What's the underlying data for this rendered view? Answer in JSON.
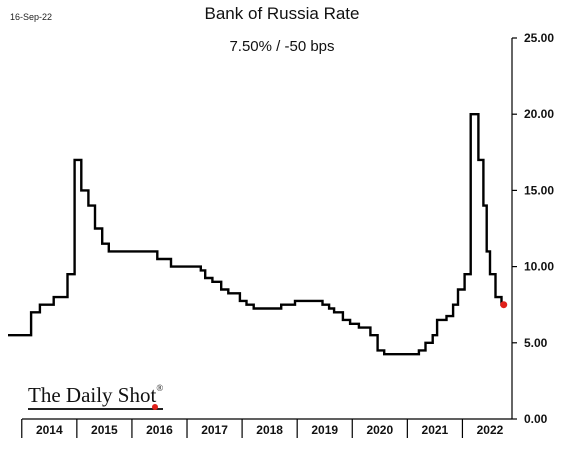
{
  "header": {
    "date": "16-Sep-22",
    "title": "Bank of Russia Rate",
    "subtitle": "7.50%  /  -50 bps"
  },
  "logo": {
    "text": "The Daily Shot",
    "mark": "®"
  },
  "chart_data": {
    "type": "line",
    "title": "Bank of Russia Rate",
    "subtitle": "7.50%  /  -50 bps",
    "xlabel": "",
    "ylabel": "",
    "step": true,
    "grid": false,
    "y_axis_position": "right",
    "ylim": [
      0,
      25
    ],
    "xlim": [
      2013.75,
      2022.9
    ],
    "y_ticks": [
      "0.00",
      "5.00",
      "10.00",
      "15.00",
      "20.00",
      "25.00"
    ],
    "x_ticks": [
      "2014",
      "2015",
      "2016",
      "2017",
      "2018",
      "2019",
      "2020",
      "2021",
      "2022"
    ],
    "line_color": "#000000",
    "marker_color": "#e0201a",
    "series": [
      {
        "points": [
          [
            2013.75,
            5.5
          ],
          [
            2014.17,
            7.0
          ],
          [
            2014.33,
            7.5
          ],
          [
            2014.58,
            8.0
          ],
          [
            2014.83,
            9.5
          ],
          [
            2014.96,
            17.0
          ],
          [
            2015.08,
            15.0
          ],
          [
            2015.21,
            14.0
          ],
          [
            2015.33,
            12.5
          ],
          [
            2015.46,
            11.5
          ],
          [
            2015.58,
            11.0
          ],
          [
            2016.46,
            10.5
          ],
          [
            2016.71,
            10.0
          ],
          [
            2017.25,
            9.75
          ],
          [
            2017.33,
            9.25
          ],
          [
            2017.46,
            9.0
          ],
          [
            2017.62,
            8.5
          ],
          [
            2017.75,
            8.25
          ],
          [
            2017.96,
            7.75
          ],
          [
            2018.08,
            7.5
          ],
          [
            2018.21,
            7.25
          ],
          [
            2018.71,
            7.5
          ],
          [
            2018.96,
            7.75
          ],
          [
            2019.46,
            7.5
          ],
          [
            2019.58,
            7.25
          ],
          [
            2019.67,
            7.0
          ],
          [
            2019.83,
            6.5
          ],
          [
            2019.96,
            6.25
          ],
          [
            2020.12,
            6.0
          ],
          [
            2020.33,
            5.5
          ],
          [
            2020.46,
            4.5
          ],
          [
            2020.58,
            4.25
          ],
          [
            2021.21,
            4.5
          ],
          [
            2021.33,
            5.0
          ],
          [
            2021.46,
            5.5
          ],
          [
            2021.54,
            6.5
          ],
          [
            2021.71,
            6.75
          ],
          [
            2021.83,
            7.5
          ],
          [
            2021.92,
            8.5
          ],
          [
            2022.04,
            9.5
          ],
          [
            2022.15,
            20.0
          ],
          [
            2022.29,
            17.0
          ],
          [
            2022.38,
            14.0
          ],
          [
            2022.44,
            11.0
          ],
          [
            2022.5,
            9.5
          ],
          [
            2022.6,
            8.0
          ],
          [
            2022.71,
            7.5
          ],
          [
            2022.75,
            7.5
          ]
        ]
      }
    ],
    "last_point": [
      2022.75,
      7.5
    ]
  }
}
